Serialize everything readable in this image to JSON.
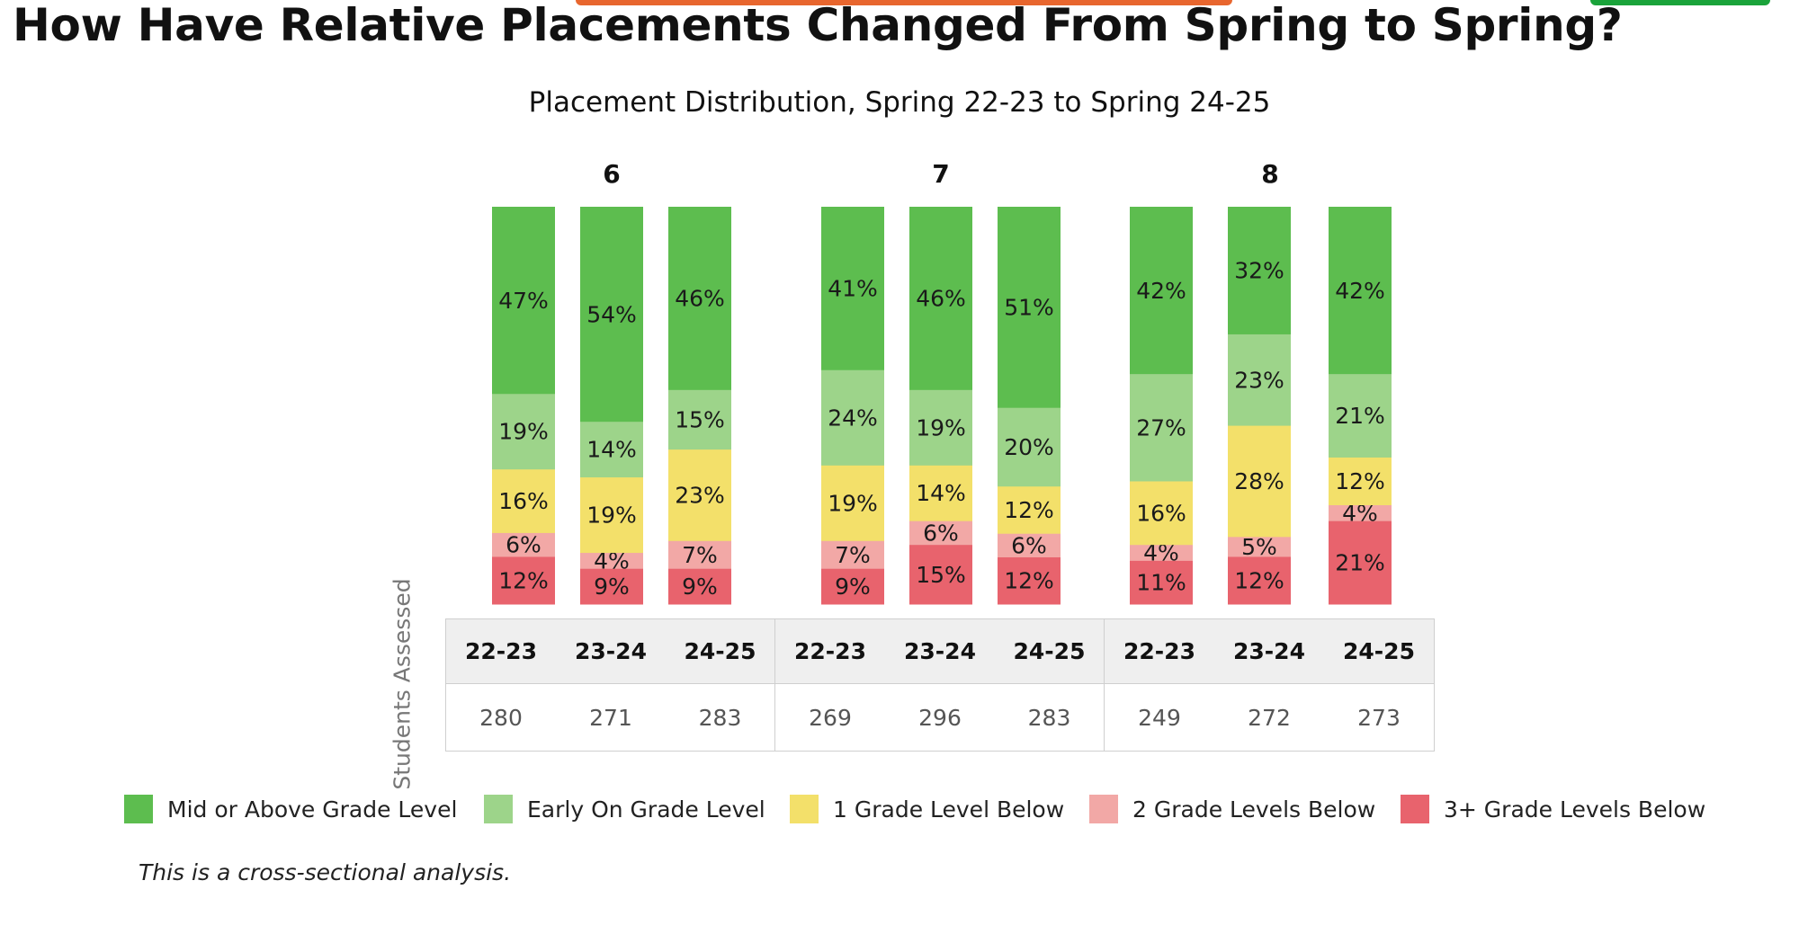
{
  "page": {
    "title": "How Have Relative Placements Changed From Spring to Spring?",
    "footnote": "This is a cross-sectional analysis.",
    "accent_colors": {
      "orange": "#e8662e",
      "green": "#1aa33a"
    }
  },
  "chart_data": {
    "type": "bar",
    "stacked": true,
    "normalized": true,
    "title": "Placement Distribution, Spring 22-23 to Spring 24-25",
    "groups": [
      "6",
      "7",
      "8"
    ],
    "categories": [
      "22-23",
      "23-24",
      "24-25"
    ],
    "series_order_bottom_to_top": [
      "3+ Grade Levels Below",
      "2 Grade Levels Below",
      "1 Grade Level Below",
      "Early On Grade Level",
      "Mid or Above Grade Level"
    ],
    "legend_order": [
      "Mid or Above Grade Level",
      "Early On Grade Level",
      "1 Grade Level Below",
      "2 Grade Levels Below",
      "3+ Grade Levels Below"
    ],
    "legend_placement": "bottom",
    "colors": {
      "Mid or Above Grade Level": "#5dbd4f",
      "Early On Grade Level": "#9dd48a",
      "1 Grade Level Below": "#f3e06a",
      "2 Grade Levels Below": "#f2a8a6",
      "3+ Grade Levels Below": "#e8636d"
    },
    "bars": [
      {
        "group": "6",
        "year": "22-23",
        "values": {
          "3+ Grade Levels Below": 12,
          "2 Grade Levels Below": 6,
          "1 Grade Level Below": 16,
          "Early On Grade Level": 19,
          "Mid or Above Grade Level": 47
        }
      },
      {
        "group": "6",
        "year": "23-24",
        "values": {
          "3+ Grade Levels Below": 9,
          "2 Grade Levels Below": 4,
          "1 Grade Level Below": 19,
          "Early On Grade Level": 14,
          "Mid or Above Grade Level": 54
        }
      },
      {
        "group": "6",
        "year": "24-25",
        "values": {
          "3+ Grade Levels Below": 9,
          "2 Grade Levels Below": 7,
          "1 Grade Level Below": 23,
          "Early On Grade Level": 15,
          "Mid or Above Grade Level": 46
        }
      },
      {
        "group": "7",
        "year": "22-23",
        "values": {
          "3+ Grade Levels Below": 9,
          "2 Grade Levels Below": 7,
          "1 Grade Level Below": 19,
          "Early On Grade Level": 24,
          "Mid or Above Grade Level": 41
        }
      },
      {
        "group": "7",
        "year": "23-24",
        "values": {
          "3+ Grade Levels Below": 15,
          "2 Grade Levels Below": 6,
          "1 Grade Level Below": 14,
          "Early On Grade Level": 19,
          "Mid or Above Grade Level": 46
        }
      },
      {
        "group": "7",
        "year": "24-25",
        "values": {
          "3+ Grade Levels Below": 12,
          "2 Grade Levels Below": 6,
          "1 Grade Level Below": 12,
          "Early On Grade Level": 20,
          "Mid or Above Grade Level": 51
        }
      },
      {
        "group": "8",
        "year": "22-23",
        "values": {
          "3+ Grade Levels Below": 11,
          "2 Grade Levels Below": 4,
          "1 Grade Level Below": 16,
          "Early On Grade Level": 27,
          "Mid or Above Grade Level": 42
        }
      },
      {
        "group": "8",
        "year": "23-24",
        "values": {
          "3+ Grade Levels Below": 12,
          "2 Grade Levels Below": 5,
          "1 Grade Level Below": 28,
          "Early On Grade Level": 23,
          "Mid or Above Grade Level": 32
        }
      },
      {
        "group": "8",
        "year": "24-25",
        "values": {
          "3+ Grade Levels Below": 21,
          "2 Grade Levels Below": 4,
          "1 Grade Level Below": 12,
          "Early On Grade Level": 21,
          "Mid or Above Grade Level": 42
        }
      }
    ],
    "table": {
      "row_label": "Students Assessed",
      "headers": [
        "22-23",
        "23-24",
        "24-25",
        "22-23",
        "23-24",
        "24-25",
        "22-23",
        "23-24",
        "24-25"
      ],
      "students_assessed": [
        280,
        271,
        283,
        269,
        296,
        283,
        249,
        272,
        273
      ]
    }
  }
}
